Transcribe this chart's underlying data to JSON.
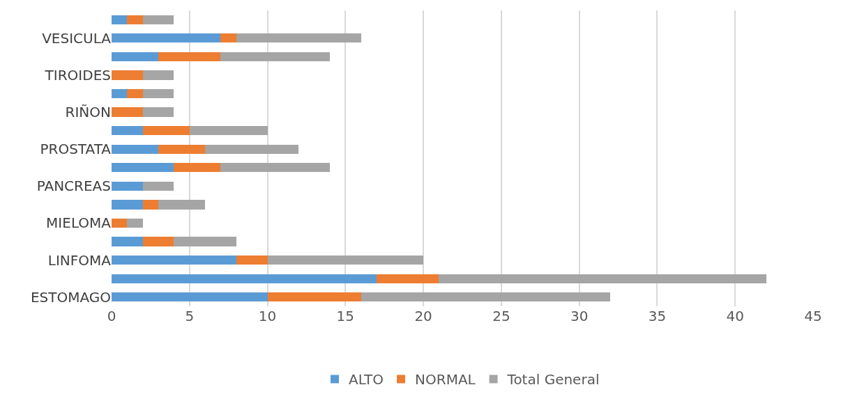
{
  "chart_data": {
    "type": "bar",
    "orientation": "horizontal",
    "stacked": true,
    "categories": [
      null,
      "VESICULA",
      null,
      "TIROIDES",
      null,
      "RIÑON",
      null,
      "PROSTATA",
      null,
      "PANCREAS",
      null,
      "MIELOMA",
      null,
      "LINFOMA",
      null,
      "ESTOMAGO"
    ],
    "series": [
      {
        "name": "ALTO",
        "color": "#5b9bd5",
        "values": [
          1,
          7,
          3,
          0,
          1,
          0,
          2,
          3,
          4,
          2,
          2,
          0,
          2,
          8,
          17,
          10
        ]
      },
      {
        "name": "NORMAL",
        "color": "#ed7d31",
        "values": [
          1,
          1,
          4,
          2,
          1,
          2,
          3,
          3,
          3,
          0,
          1,
          1,
          2,
          2,
          4,
          6
        ]
      },
      {
        "name": "Total General",
        "color": "#a5a5a5",
        "values": [
          2,
          8,
          7,
          2,
          2,
          2,
          5,
          6,
          7,
          2,
          3,
          1,
          4,
          10,
          21,
          16
        ]
      }
    ],
    "xlim": [
      0,
      45
    ],
    "xticks": [
      0,
      5,
      10,
      15,
      20,
      25,
      30,
      35,
      40,
      45
    ],
    "grid": "x",
    "legend": "bottom"
  }
}
